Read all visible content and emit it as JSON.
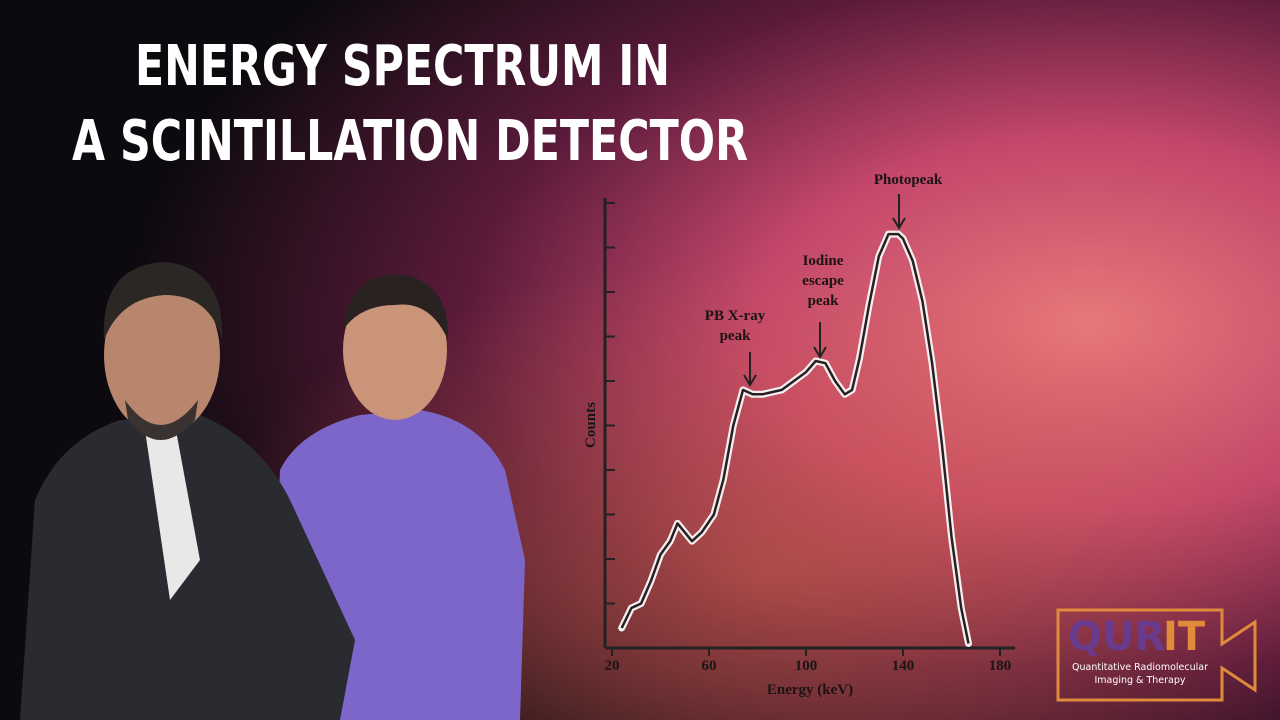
{
  "title": [
    "ENERGY SPECTRUM IN",
    "A SCINTILLATION DETECTOR"
  ],
  "chart_data": {
    "type": "line",
    "x_label": "Energy (keV)",
    "y_label": "Counts",
    "x": [
      24,
      28,
      32,
      36,
      40,
      44,
      47,
      50,
      53,
      57,
      62,
      66,
      70,
      74,
      78,
      82,
      86,
      90,
      95,
      100,
      104,
      108,
      112,
      116,
      119,
      122,
      126,
      130,
      134,
      138,
      140,
      144,
      148,
      152,
      156,
      160,
      164,
      167
    ],
    "values": [
      0.45,
      0.9,
      1.0,
      1.5,
      2.1,
      2.4,
      2.8,
      2.6,
      2.4,
      2.6,
      3.0,
      3.8,
      5.0,
      5.8,
      5.7,
      5.7,
      5.75,
      5.8,
      6.0,
      6.2,
      6.45,
      6.4,
      6.0,
      5.7,
      5.8,
      6.5,
      7.7,
      8.8,
      9.3,
      9.3,
      9.2,
      8.7,
      7.8,
      6.4,
      4.6,
      2.5,
      0.9,
      0.1
    ],
    "xlim": [
      20,
      180
    ],
    "xticks": [
      20,
      60,
      100,
      140,
      180
    ],
    "ylim": [
      0,
      10
    ],
    "yticks": [
      0,
      1,
      2,
      3,
      4,
      5,
      6,
      7,
      8,
      9,
      10
    ],
    "annotations": [
      {
        "lines": [
          "Photopeak"
        ]
      },
      {
        "lines": [
          "Iodine",
          "escape",
          "peak"
        ]
      },
      {
        "lines": [
          "PB X-ray",
          "peak"
        ]
      }
    ]
  },
  "logo": {
    "name": [
      "QUR",
      "IT"
    ],
    "subtitle": [
      "Quantitative Radiomolecular",
      "Imaging & Therapy"
    ]
  }
}
